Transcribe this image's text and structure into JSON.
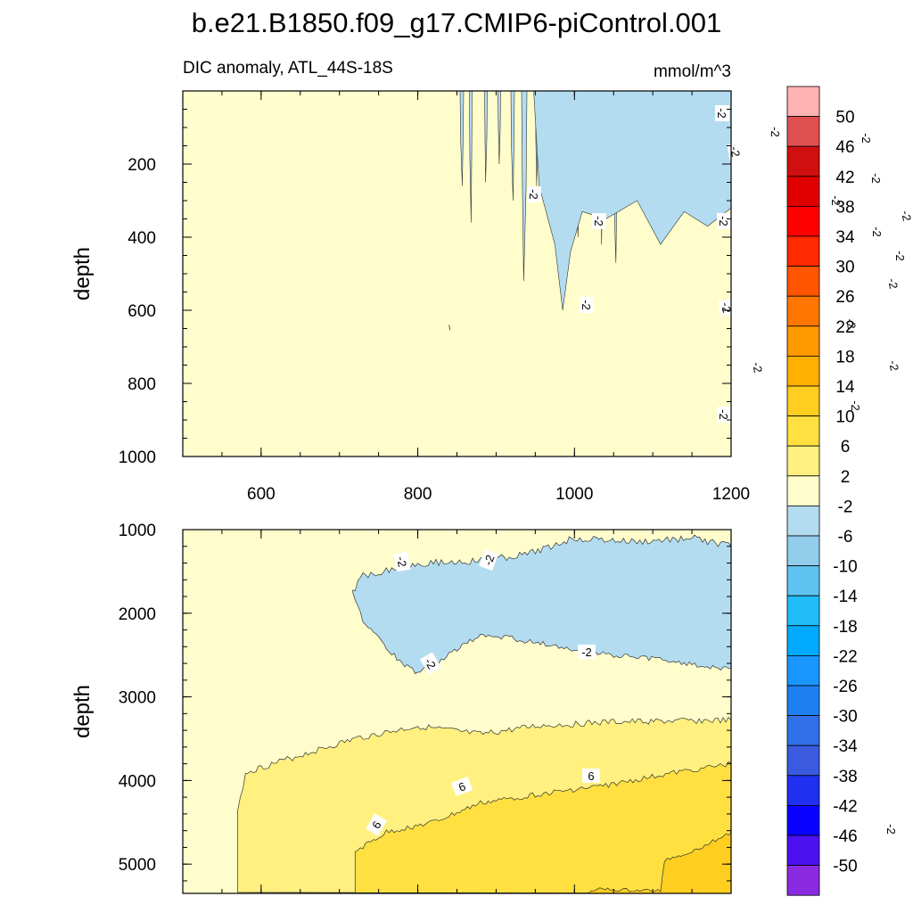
{
  "title": "b.e21.B1850.f09_g17.CMIP6-piControl.001",
  "subtitle_left": "DIC anomaly, ATL_44S-18S",
  "subtitle_right": "mmol/m^3",
  "colors": {
    "c_lt2": "#b3dcf0",
    "c_2_6": "#fffdcc",
    "c_6_10": "#fff080",
    "c_10_14": "#ffe040",
    "c_14_18": "#ffce20",
    "contour_line": "#333333"
  },
  "chart_data": [
    {
      "type": "contour",
      "panel": "top",
      "ylabel": "depth",
      "xlim": [
        500,
        1200
      ],
      "ylim": [
        1000,
        0
      ],
      "xticks": [
        "600",
        "800",
        "1000",
        "1200"
      ],
      "yticks": [
        "200",
        "400",
        "600",
        "800",
        "1000"
      ],
      "contour_labels": [
        "-2",
        "-2",
        "-2",
        "-2",
        "-2",
        "-2",
        "-2",
        "-2",
        "-2",
        "-2",
        "-2",
        "-2",
        "-2",
        "-2",
        "-2",
        "-2",
        "-2",
        "-2",
        "-2",
        "-2",
        "-2",
        "-2",
        "-2",
        "-2",
        "-2",
        "-2",
        "-2",
        "-2",
        "-2",
        "-2",
        "-2",
        "-2",
        "-2",
        "-2",
        "-2",
        "-2",
        "-2"
      ]
    },
    {
      "type": "contour",
      "panel": "bottom",
      "ylabel": "depth",
      "xlim": [
        500,
        1200
      ],
      "ylim": [
        5350,
        1000
      ],
      "yticks": [
        "1000",
        "2000",
        "3000",
        "4000",
        "5000"
      ],
      "contour_labels": [
        "-2",
        "-2",
        "-2",
        "-2",
        "6",
        "6",
        "6"
      ]
    }
  ],
  "colorbar": {
    "levels": [
      "50",
      "46",
      "42",
      "38",
      "34",
      "30",
      "26",
      "22",
      "18",
      "14",
      "10",
      "6",
      "2",
      "-2",
      "-6",
      "-10",
      "-14",
      "-18",
      "-22",
      "-26",
      "-30",
      "-34",
      "-38",
      "-42",
      "-46",
      "-50"
    ],
    "colors": [
      "#ffb3b3",
      "#e05050",
      "#d01010",
      "#e00000",
      "#ff0000",
      "#ff2a00",
      "#ff5500",
      "#ff7700",
      "#ff9900",
      "#ffb000",
      "#ffce20",
      "#ffe040",
      "#fff080",
      "#fffdcc",
      "#b3dcf0",
      "#93cdec",
      "#5ec3f0",
      "#20bdf8",
      "#00aaff",
      "#1a96ff",
      "#1e80f0",
      "#3070e8",
      "#3a5ae0",
      "#2030f0",
      "#0a00ff",
      "#4d10f0",
      "#8a2be2"
    ]
  }
}
